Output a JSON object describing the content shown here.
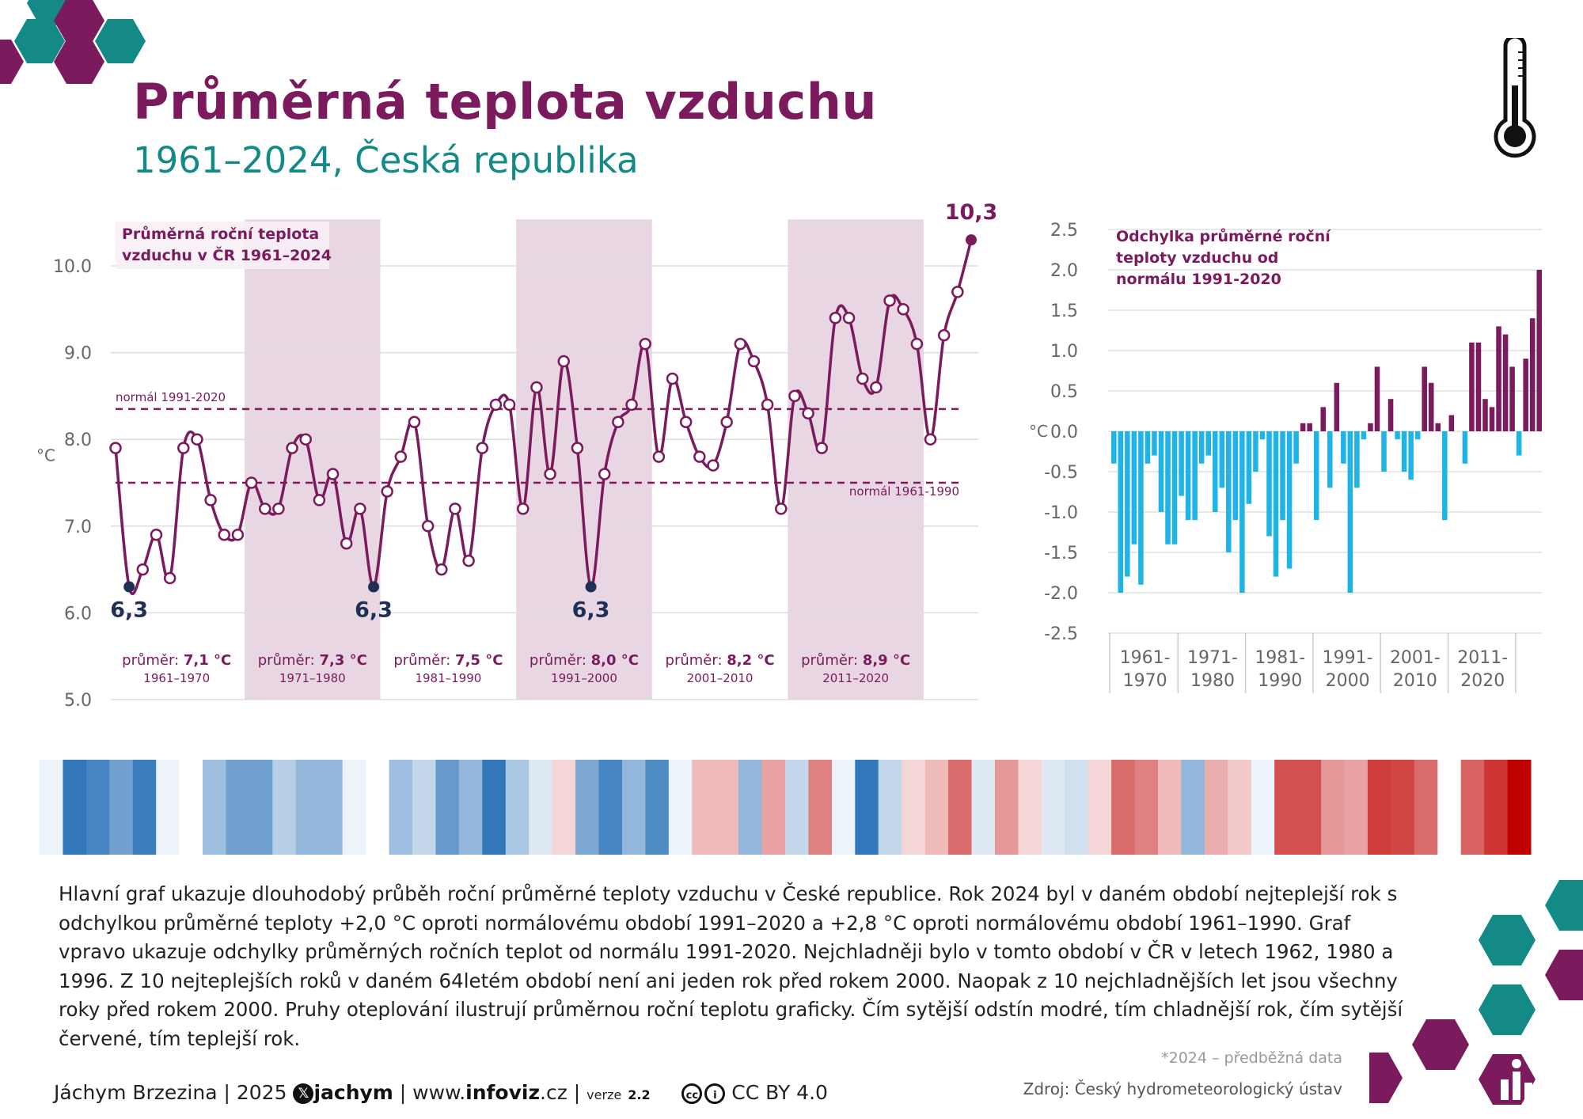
{
  "header": {
    "title": "Průměrná teplota vzduchu",
    "subtitle": "1961–2024, Česká republika"
  },
  "colors": {
    "primary": "#7b1a5c",
    "teal": "#138a86",
    "cold_bar": "#1eb4e6",
    "warm_bar": "#7b1a5c",
    "decade_band": "#e8d7e3",
    "min_point": "#1f2f56"
  },
  "icons": [
    "thermometer-icon",
    "hexagon-decoration",
    "x-logo-icon",
    "cc-icon",
    "by-icon",
    "chart-icon"
  ],
  "chart_data": [
    {
      "type": "line",
      "title": "Průměrná roční teplota vzduchu v ČR 1961–2024",
      "ylabel": "°C",
      "ylim": [
        5.0,
        10.5
      ],
      "yticks": [
        "5.0",
        "6.0",
        "7.0",
        "8.0",
        "9.0",
        "10.0"
      ],
      "grid": true,
      "x": [
        1961,
        1962,
        1963,
        1964,
        1965,
        1966,
        1967,
        1968,
        1969,
        1970,
        1971,
        1972,
        1973,
        1974,
        1975,
        1976,
        1977,
        1978,
        1979,
        1980,
        1981,
        1982,
        1983,
        1984,
        1985,
        1986,
        1987,
        1988,
        1989,
        1990,
        1991,
        1992,
        1993,
        1994,
        1995,
        1996,
        1997,
        1998,
        1999,
        2000,
        2001,
        2002,
        2003,
        2004,
        2005,
        2006,
        2007,
        2008,
        2009,
        2010,
        2011,
        2012,
        2013,
        2014,
        2015,
        2016,
        2017,
        2018,
        2019,
        2020,
        2021,
        2022,
        2023,
        2024
      ],
      "values": [
        7.9,
        6.3,
        6.5,
        6.9,
        6.4,
        7.9,
        8.0,
        7.3,
        6.9,
        6.9,
        7.5,
        7.2,
        7.2,
        7.9,
        8.0,
        7.3,
        7.6,
        6.8,
        7.2,
        6.3,
        7.4,
        7.8,
        8.2,
        7.0,
        6.5,
        7.2,
        6.6,
        7.9,
        8.4,
        8.4,
        7.2,
        8.6,
        7.6,
        8.9,
        7.9,
        6.3,
        7.6,
        8.2,
        8.4,
        9.1,
        7.8,
        8.7,
        8.2,
        7.8,
        7.7,
        8.2,
        9.1,
        8.9,
        8.4,
        7.2,
        8.5,
        8.3,
        7.9,
        9.4,
        9.4,
        8.7,
        8.6,
        9.6,
        9.5,
        9.1,
        8.0,
        9.2,
        9.7,
        10.3
      ],
      "highlights": [
        {
          "label": "6,3",
          "year": 1962
        },
        {
          "label": "6,3",
          "year": 1980
        },
        {
          "label": "6,3",
          "year": 1996
        },
        {
          "label": "10,3",
          "year": 2024
        }
      ],
      "reference_lines": [
        {
          "label": "normál 1991-2020",
          "value": 8.35
        },
        {
          "label": "normál 1961-1990",
          "value": 7.5
        }
      ],
      "decades": [
        {
          "avg": "průměr: 7,1 °C",
          "range": "1961–1970",
          "from": 1961,
          "to": 1970,
          "band": false
        },
        {
          "avg": "průměr: 7,3 °C",
          "range": "1971–1980",
          "from": 1971,
          "to": 1980,
          "band": true
        },
        {
          "avg": "průměr: 7,5 °C",
          "range": "1981–1990",
          "from": 1981,
          "to": 1990,
          "band": false
        },
        {
          "avg": "průměr: 8,0 °C",
          "range": "1991–2000",
          "from": 1991,
          "to": 2000,
          "band": true
        },
        {
          "avg": "průměr: 8,2 °C",
          "range": "2001–2010",
          "from": 2001,
          "to": 2010,
          "band": false
        },
        {
          "avg": "průměr: 8,9 °C",
          "range": "2011–2020",
          "from": 2011,
          "to": 2020,
          "band": true
        }
      ],
      "avg_prefix": "průměr: "
    },
    {
      "type": "bar",
      "title": "Odchylka průměrné roční teploty vzduchu od normálu 1991-2020",
      "ylabel": "°C",
      "ylim": [
        -2.5,
        2.5
      ],
      "yticks": [
        "2.5",
        "2.0",
        "1.5",
        "1.0",
        "0.5",
        "0.0",
        "-0.5",
        "-1.0",
        "-1.5",
        "-2.0",
        "-2.5"
      ],
      "decade_labels": [
        [
          "1961-",
          "1970"
        ],
        [
          "1971-",
          "1980"
        ],
        [
          "1981-",
          "1990"
        ],
        [
          "1991-",
          "2000"
        ],
        [
          "2001-",
          "2010"
        ],
        [
          "2011-",
          "2020"
        ]
      ],
      "x": [
        1961,
        1962,
        1963,
        1964,
        1965,
        1966,
        1967,
        1968,
        1969,
        1970,
        1971,
        1972,
        1973,
        1974,
        1975,
        1976,
        1977,
        1978,
        1979,
        1980,
        1981,
        1982,
        1983,
        1984,
        1985,
        1986,
        1987,
        1988,
        1989,
        1990,
        1991,
        1992,
        1993,
        1994,
        1995,
        1996,
        1997,
        1998,
        1999,
        2000,
        2001,
        2002,
        2003,
        2004,
        2005,
        2006,
        2007,
        2008,
        2009,
        2010,
        2011,
        2012,
        2013,
        2014,
        2015,
        2016,
        2017,
        2018,
        2019,
        2020,
        2021,
        2022,
        2023,
        2024
      ],
      "values": [
        -0.4,
        -2.0,
        -1.8,
        -1.4,
        -1.9,
        -0.4,
        -0.3,
        -1.0,
        -1.4,
        -1.4,
        -0.8,
        -1.1,
        -1.1,
        -0.4,
        -0.3,
        -1.0,
        -0.7,
        -1.5,
        -1.1,
        -2.0,
        -0.9,
        -0.5,
        -0.1,
        -1.3,
        -1.8,
        -1.1,
        -1.7,
        -0.4,
        0.1,
        0.1,
        -1.1,
        0.3,
        -0.7,
        0.6,
        -0.4,
        -2.0,
        -0.7,
        -0.1,
        0.1,
        0.8,
        -0.5,
        0.4,
        -0.1,
        -0.5,
        -0.6,
        -0.1,
        0.8,
        0.6,
        0.1,
        -1.1,
        0.2,
        0.0,
        -0.4,
        1.1,
        1.1,
        0.4,
        0.3,
        1.3,
        1.2,
        0.8,
        -0.3,
        0.9,
        1.4,
        2.0
      ]
    },
    {
      "type": "heatmap",
      "title": "",
      "note": "warming stripes 1961–2024",
      "x": [
        1961,
        1962,
        1963,
        1964,
        1965,
        1966,
        1967,
        1968,
        1969,
        1970,
        1971,
        1972,
        1973,
        1974,
        1975,
        1976,
        1977,
        1978,
        1979,
        1980,
        1981,
        1982,
        1983,
        1984,
        1985,
        1986,
        1987,
        1988,
        1989,
        1990,
        1991,
        1992,
        1993,
        1994,
        1995,
        1996,
        1997,
        1998,
        1999,
        2000,
        2001,
        2002,
        2003,
        2004,
        2005,
        2006,
        2007,
        2008,
        2009,
        2010,
        2011,
        2012,
        2013,
        2014,
        2015,
        2016,
        2017,
        2018,
        2019,
        2020,
        2021,
        2022,
        2023,
        2024
      ],
      "values": [
        7.9,
        6.3,
        6.5,
        6.9,
        6.4,
        7.9,
        8.0,
        7.3,
        6.9,
        6.9,
        7.5,
        7.2,
        7.2,
        7.9,
        8.0,
        7.3,
        7.6,
        6.8,
        7.2,
        6.3,
        7.4,
        7.8,
        8.2,
        7.0,
        6.5,
        7.2,
        6.6,
        7.9,
        8.4,
        8.4,
        7.2,
        8.6,
        7.6,
        8.9,
        7.9,
        6.3,
        7.6,
        8.2,
        8.4,
        9.1,
        7.8,
        8.7,
        8.2,
        7.8,
        7.7,
        8.2,
        9.1,
        8.9,
        8.4,
        7.2,
        8.5,
        8.3,
        7.9,
        9.4,
        9.4,
        8.7,
        8.6,
        9.6,
        9.5,
        9.1,
        8.0,
        9.2,
        9.7,
        10.3
      ]
    }
  ],
  "description": "Hlavní graf ukazuje dlouhodobý průběh roční průměrné teploty vzduchu v České republice. Rok 2024 byl v daném období nejteplejší rok s odchylkou průměrné teploty +2,0 °C oproti normálovému období 1991–2020 a +2,8 °C oproti normálovému období 1961–1990. Graf vpravo ukazuje odchylky průměrných ročních teplot od normálu 1991-2020. Nejchladněji bylo v tomto období v ČR v letech 1962, 1980 a 1996. Z 10 nejteplejších roků v daném 64letém období není ani jeden rok před rokem 2000. Naopak z 10 nejchladnějších let jsou všechny roky před rokem 2000. Pruhy oteplování ilustrují průměrnou roční teplotu graficky. Čím sytější odstín modré, tím chladnější rok, čím sytější červené, tím teplejší rok.",
  "footer": {
    "author": "Jáchym Brzezina | 2025",
    "x_handle": "jachym",
    "sep": " | ",
    "site_prefix": "www.",
    "site_bold": "infoviz",
    "site_suffix": ".cz",
    "version_label": "verze",
    "version": "2.2",
    "license": "CC BY 4.0",
    "note": "*2024 – předběžná data",
    "source": "Zdroj: Český hydrometeorologický ústav"
  }
}
